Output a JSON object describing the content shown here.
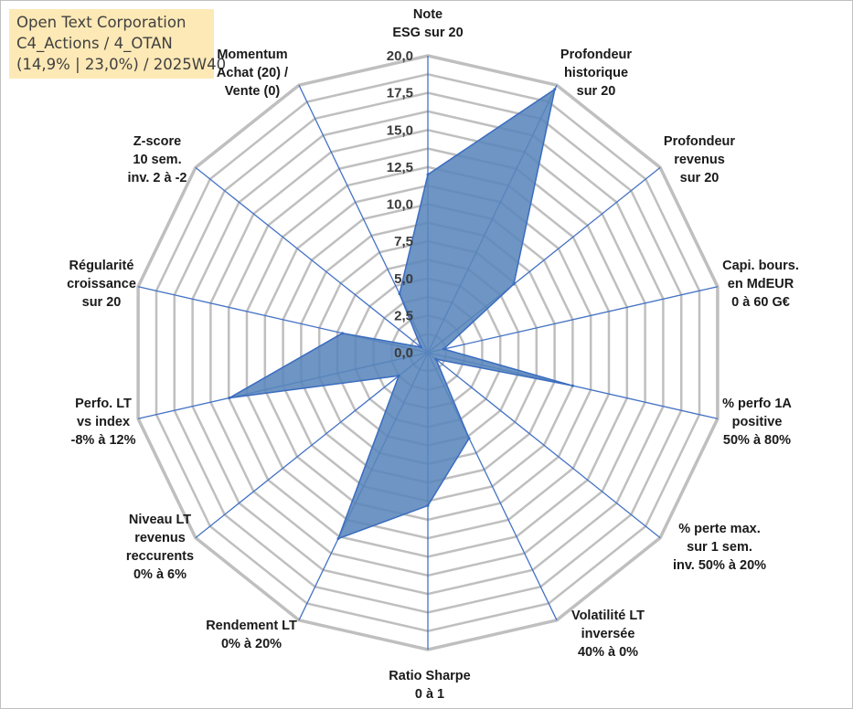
{
  "header": {
    "line1": "Open Text Corporation",
    "line2": "C4_Actions / 4_OTAN",
    "line3": "(14,9% | 23,0%) / 2025W40"
  },
  "colors": {
    "grid": "#bfbfbf",
    "spoke": "#4472c4",
    "fill": "#5a86bb",
    "stroke": "#3a6cc0"
  },
  "chart_data": {
    "type": "radar",
    "title": "",
    "range": [
      0,
      20
    ],
    "ticks": [
      {
        "value": 0,
        "label": "0,0"
      },
      {
        "value": 2.5,
        "label": "2,5"
      },
      {
        "value": 5,
        "label": "5,0"
      },
      {
        "value": 7.5,
        "label": "7,5"
      },
      {
        "value": 10,
        "label": "10,0"
      },
      {
        "value": 12.5,
        "label": "12,5"
      },
      {
        "value": 15,
        "label": "15,0"
      },
      {
        "value": 17.5,
        "label": "17,5"
      },
      {
        "value": 20,
        "label": "20,0"
      }
    ],
    "gridlines": [
      1.25,
      2.5,
      3.75,
      5,
      6.25,
      7.5,
      8.75,
      10,
      11.25,
      12.5,
      13.75,
      15,
      16.25,
      17.5,
      18.75,
      20
    ],
    "categories": [
      {
        "lines": [
          "Note",
          "ESG sur 20"
        ],
        "anchor": "middle"
      },
      {
        "lines": [
          "Profondeur",
          "historique",
          "sur 20"
        ],
        "anchor": "middle"
      },
      {
        "lines": [
          "Profondeur",
          "revenus",
          "sur 20"
        ],
        "anchor": "middle"
      },
      {
        "lines": [
          "Capi. bours.",
          "en MdEUR",
          "0 à 60 G€"
        ],
        "anchor": "middle"
      },
      {
        "lines": [
          "% perfo 1A",
          "positive",
          "50% à 80%"
        ],
        "anchor": "middle"
      },
      {
        "lines": [
          "% perte max.",
          "sur 1 sem.",
          "inv. 50% à 20%"
        ],
        "anchor": "middle"
      },
      {
        "lines": [
          "Volatilité LT",
          "inversée",
          "40% à 0%"
        ],
        "anchor": "middle"
      },
      {
        "lines": [
          "Ratio Sharpe",
          "0 à 1"
        ],
        "anchor": "middle"
      },
      {
        "lines": [
          "Rendement LT",
          "0% à 20%"
        ],
        "anchor": "middle"
      },
      {
        "lines": [
          "Niveau LT",
          "revenus",
          "reccurents",
          "0% à 6%"
        ],
        "anchor": "middle"
      },
      {
        "lines": [
          "Perfo. LT",
          "vs index",
          "-8% à 12%"
        ],
        "anchor": "middle"
      },
      {
        "lines": [
          "Régularité",
          "croissance",
          "sur 20"
        ],
        "anchor": "middle"
      },
      {
        "lines": [
          "Z-score",
          "10 sem.",
          "inv. 2 à -2"
        ],
        "anchor": "middle"
      },
      {
        "lines": [
          "Momentum",
          "Achat (20) /",
          "Vente (0)"
        ],
        "anchor": "middle"
      }
    ],
    "series": [
      {
        "name": "4_OTAN",
        "values": [
          12.0,
          19.7,
          7.4,
          1.1,
          10.0,
          0.7,
          6.4,
          10.3,
          13.9,
          2.5,
          13.7,
          5.9,
          0.6,
          4.4
        ]
      }
    ]
  }
}
